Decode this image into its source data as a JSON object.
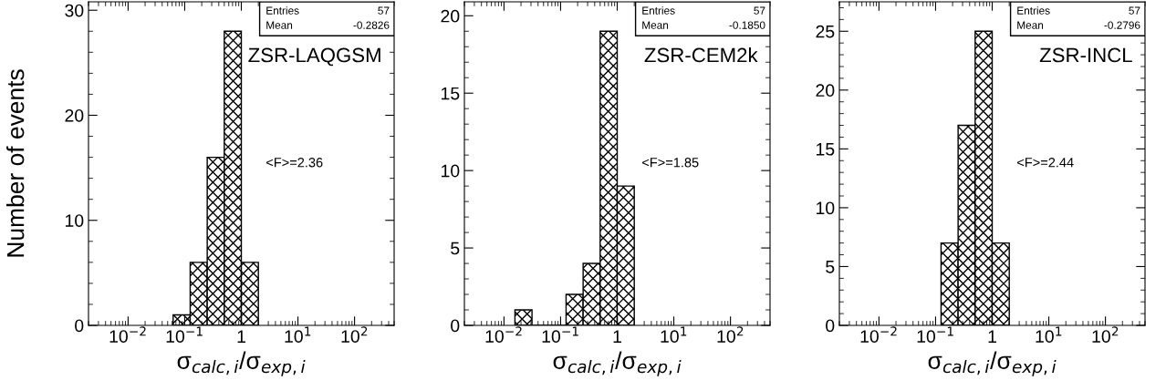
{
  "chart_data": [
    {
      "type": "histogram",
      "ylabel": "Number of events",
      "xlabel": "σ$_{calc,i}$/σ$_{exp,i}$",
      "log": "x",
      "bins": [
        0.0625,
        0.125,
        0.25,
        0.5,
        1,
        2
      ],
      "values": [
        1,
        6,
        16,
        28,
        6
      ],
      "color": "#000000",
      "xlim": [
        0.002,
        500
      ],
      "xticks": [
        {
          "value": 0.01,
          "label": "10$^{−2}$"
        },
        {
          "value": 0.1,
          "label": "10$^{−1}$"
        },
        1,
        {
          "value": 10,
          "label": "10$^{1}$"
        },
        {
          "value": 100,
          "label": "10$^{2}$"
        }
      ],
      "ylim": [
        0,
        30.8
      ],
      "yticks": [
        0,
        10,
        20,
        30
      ],
      "grid": false,
      "annotations": [
        "Entries",
        "57",
        "Mean",
        "-0.2826",
        "ZSR-LAQGSM",
        "<F>=2.36"
      ]
    },
    {
      "type": "histogram",
      "xlabel": "σ$_{calc,i}$/σ$_{exp,i}$",
      "log": "x",
      "bins": [
        0.015625,
        0.03125,
        0.0625,
        0.125,
        0.25,
        0.5,
        1,
        2
      ],
      "values": [
        1,
        0,
        0,
        2,
        4,
        19,
        9
      ],
      "color": "#000000",
      "xlim": [
        0.002,
        500
      ],
      "xticks": [
        {
          "value": 0.01,
          "label": "10$^{−2}$"
        },
        {
          "value": 0.1,
          "label": "10$^{−1}$"
        },
        1,
        {
          "value": 10,
          "label": "10$^{1}$"
        },
        {
          "value": 100,
          "label": "10$^{2}$"
        }
      ],
      "ylim": [
        0,
        20.9
      ],
      "yticks": [
        0,
        5,
        10,
        15,
        20
      ],
      "grid": false,
      "annotations": [
        "Entries",
        "57",
        "Mean",
        "-0.1850",
        "ZSR-CEM2k",
        "<F>=1.85"
      ]
    },
    {
      "type": "histogram",
      "xlabel": "σ$_{calc,i}$/σ$_{exp,i}$",
      "log": "x",
      "bins": [
        0.125,
        0.25,
        0.5,
        1,
        2
      ],
      "values": [
        7,
        17,
        25,
        7
      ],
      "color": "#000000",
      "xlim": [
        0.002,
        500
      ],
      "xticks": [
        {
          "value": 0.01,
          "label": "10$^{−2}$"
        },
        {
          "value": 0.1,
          "label": "10$^{−1}$"
        },
        1,
        {
          "value": 10,
          "label": "10$^{1}$"
        },
        {
          "value": 100,
          "label": "10$^{2}$"
        }
      ],
      "ylim": [
        0,
        27.5
      ],
      "yticks": [
        0,
        5,
        10,
        15,
        20,
        25
      ],
      "grid": false,
      "annotations": [
        "Entries",
        "57",
        "Mean",
        "-0.2796",
        "ZSR-INCL",
        "<F>=2.44"
      ]
    }
  ]
}
